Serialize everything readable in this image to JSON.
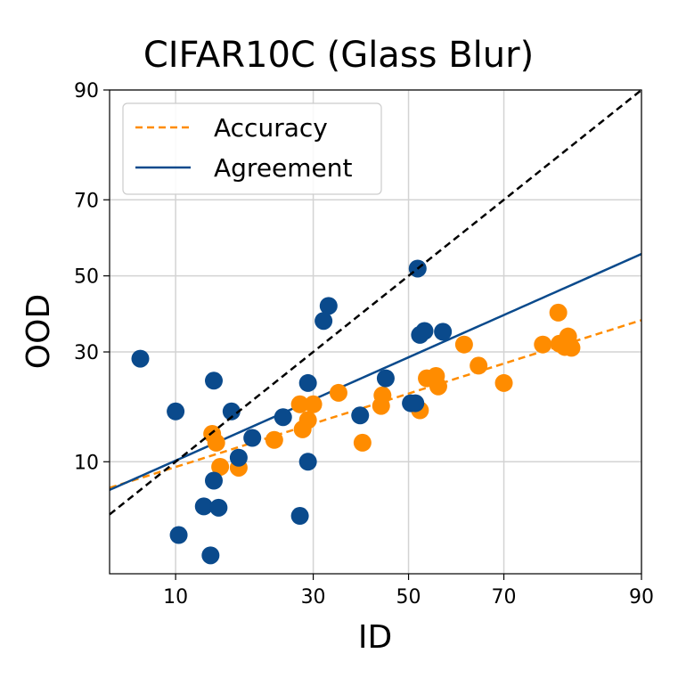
{
  "chart_data": {
    "type": "scatter",
    "title": "CIFAR10C (Glass Blur)",
    "xlabel": "ID",
    "ylabel": "OOD",
    "scale": "probit",
    "xlim": [
      5,
      90
    ],
    "ylim": [
      2,
      90
    ],
    "xticks": [
      10,
      30,
      50,
      70,
      90
    ],
    "yticks": [
      10,
      30,
      50,
      70,
      90
    ],
    "grid": true,
    "legend_position": "top-left",
    "series": [
      {
        "name": "Accuracy",
        "kind": "points",
        "color": "#ff8c00",
        "points": [
          [
            14.0,
            13.8
          ],
          [
            14.5,
            12.5
          ],
          [
            15.0,
            9.4
          ],
          [
            17.5,
            9.3
          ],
          [
            23.0,
            12.9
          ],
          [
            27.5,
            18.8
          ],
          [
            28.0,
            14.5
          ],
          [
            29.0,
            16.0
          ],
          [
            30.0,
            18.8
          ],
          [
            35.0,
            21.0
          ],
          [
            40.0,
            12.5
          ],
          [
            44.0,
            18.5
          ],
          [
            44.3,
            20.5
          ],
          [
            52.5,
            17.7
          ],
          [
            54.0,
            24.0
          ],
          [
            56.0,
            24.5
          ],
          [
            56.5,
            22.3
          ],
          [
            62.0,
            31.8
          ],
          [
            65.0,
            26.8
          ],
          [
            70.0,
            23.0
          ],
          [
            77.0,
            31.8
          ],
          [
            79.5,
            40.0
          ],
          [
            79.7,
            32.0
          ],
          [
            80.5,
            31.2
          ],
          [
            81.0,
            33.8
          ],
          [
            81.5,
            31.0
          ]
        ]
      },
      {
        "name": "",
        "kind": "points",
        "color": "#0a4a8c",
        "points": [
          [
            7.0,
            28.4
          ],
          [
            10.0,
            17.5
          ],
          [
            10.3,
            3.7
          ],
          [
            13.0,
            5.6
          ],
          [
            13.8,
            2.7
          ],
          [
            14.2,
            23.5
          ],
          [
            14.2,
            7.9
          ],
          [
            14.8,
            5.5
          ],
          [
            16.5,
            17.5
          ],
          [
            17.5,
            10.5
          ],
          [
            19.5,
            13.2
          ],
          [
            24.5,
            16.5
          ],
          [
            27.5,
            4.9
          ],
          [
            29.0,
            23.0
          ],
          [
            29.0,
            10.0
          ],
          [
            32.0,
            37.8
          ],
          [
            33.0,
            41.8
          ],
          [
            39.5,
            16.8
          ],
          [
            45.0,
            24.0
          ],
          [
            50.5,
            19.0
          ],
          [
            51.5,
            19.0
          ],
          [
            52.0,
            52.0
          ],
          [
            52.5,
            34.2
          ],
          [
            53.5,
            35.2
          ],
          [
            57.5,
            35.0
          ]
        ]
      },
      {
        "name": "Accuracy",
        "kind": "dashed-line",
        "color": "#ff8c00",
        "points": [
          [
            5,
            7.2
          ],
          [
            90,
            38.0
          ]
        ]
      },
      {
        "name": "Agreement",
        "kind": "line",
        "color": "#0a4a8c",
        "points": [
          [
            5,
            7.0
          ],
          [
            90,
            56.0
          ]
        ]
      },
      {
        "name": "",
        "kind": "dashed-line",
        "color": "#000000",
        "points": [
          [
            5,
            5
          ],
          [
            90,
            90
          ]
        ]
      }
    ]
  }
}
